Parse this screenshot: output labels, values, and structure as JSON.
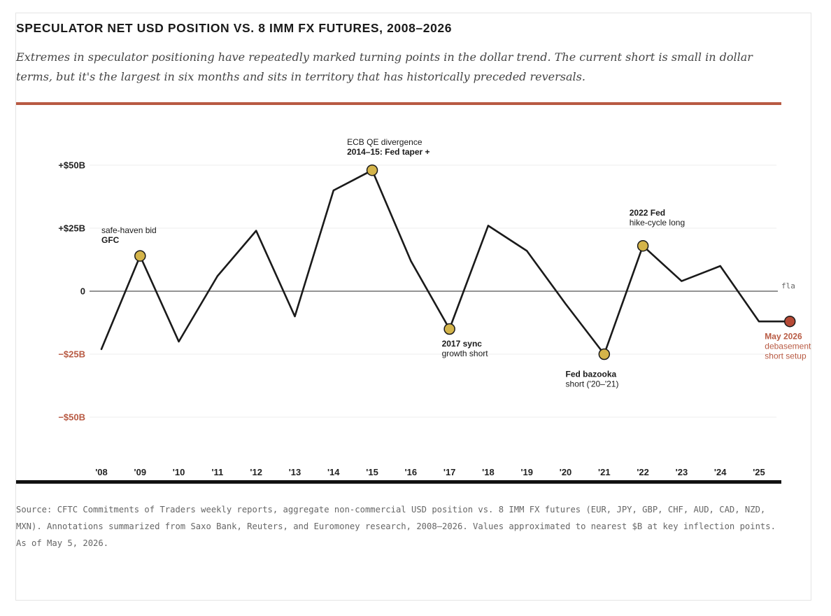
{
  "header": {
    "title": "SPECULATOR NET USD POSITION VS. 8 IMM FX FUTURES, 2008–2026",
    "subtitle": "Extremes in speculator positioning have repeatedly marked turning points in the dollar trend. The current short is small in dollar terms, but it's the largest in six months and sits in territory that has historically preceded reversals."
  },
  "footer": {
    "source": "Source: CFTC Commitments of Traders weekly reports, aggregate non-commercial USD position vs. 8 IMM FX futures (EUR, JPY, GBP, CHF, AUD, CAD, NZD, MXN). Annotations summarized from Saxo Bank, Reuters, and Euromoney research, 2008–2026. Values approximated to nearest $B at key inflection points. As of May 5, 2026."
  },
  "chart_data": {
    "type": "line",
    "title": "SPECULATOR NET USD POSITION VS. 8 IMM FX FUTURES, 2008–2026",
    "ylim": [
      -75,
      60
    ],
    "xlim": [
      2007.75,
      2026.3
    ],
    "grid": true,
    "y_ticks": [
      {
        "value": 50,
        "label": "+$50B",
        "color": "#222222"
      },
      {
        "value": 25,
        "label": "+$25B",
        "color": "#222222"
      },
      {
        "value": 0,
        "label": "0",
        "color": "#222222"
      },
      {
        "value": -25,
        "label": "−$25B",
        "color": "#b85a43"
      },
      {
        "value": -50,
        "label": "−$50B",
        "color": "#b85a43"
      }
    ],
    "x_ticks": [
      {
        "value": 2008,
        "label": "'08"
      },
      {
        "value": 2009,
        "label": "'09"
      },
      {
        "value": 2010,
        "label": "'10"
      },
      {
        "value": 2011,
        "label": "'11"
      },
      {
        "value": 2012,
        "label": "'12"
      },
      {
        "value": 2013,
        "label": "'13"
      },
      {
        "value": 2014,
        "label": "'14"
      },
      {
        "value": 2015,
        "label": "'15"
      },
      {
        "value": 2016,
        "label": "'16"
      },
      {
        "value": 2017,
        "label": "'17"
      },
      {
        "value": 2018,
        "label": "'18"
      },
      {
        "value": 2019,
        "label": "'19"
      },
      {
        "value": 2020,
        "label": "'20"
      },
      {
        "value": 2021,
        "label": "'21"
      },
      {
        "value": 2022,
        "label": "'22"
      },
      {
        "value": 2023,
        "label": "'23"
      },
      {
        "value": 2024,
        "label": "'24"
      },
      {
        "value": 2025,
        "label": "'25"
      }
    ],
    "zero_line_label": "fla",
    "series": [
      {
        "color": "#1a1a1a",
        "points": [
          {
            "x": 2008.0,
            "y": -23
          },
          {
            "x": 2009.0,
            "y": 14
          },
          {
            "x": 2010.0,
            "y": -20
          },
          {
            "x": 2011.0,
            "y": 6
          },
          {
            "x": 2012.0,
            "y": 24
          },
          {
            "x": 2013.0,
            "y": -10
          },
          {
            "x": 2014.0,
            "y": 40
          },
          {
            "x": 2015.0,
            "y": 48
          },
          {
            "x": 2016.0,
            "y": 12
          },
          {
            "x": 2017.0,
            "y": -15
          },
          {
            "x": 2018.0,
            "y": 26
          },
          {
            "x": 2019.0,
            "y": 16
          },
          {
            "x": 2020.0,
            "y": -5
          },
          {
            "x": 2021.0,
            "y": -25
          },
          {
            "x": 2022.0,
            "y": 18
          },
          {
            "x": 2023.0,
            "y": 4
          },
          {
            "x": 2024.0,
            "y": 10
          },
          {
            "x": 2025.0,
            "y": -12
          },
          {
            "x": 2025.8,
            "y": -12
          }
        ]
      }
    ],
    "markers": [
      {
        "x": 2009.0,
        "y": 14,
        "color": "#d4b44a"
      },
      {
        "x": 2015.0,
        "y": 48,
        "color": "#d4b44a"
      },
      {
        "x": 2017.0,
        "y": -15,
        "color": "#d4b44a"
      },
      {
        "x": 2021.0,
        "y": -25,
        "color": "#d4b44a"
      },
      {
        "x": 2022.0,
        "y": 18,
        "color": "#d4b44a"
      },
      {
        "x": 2025.8,
        "y": -12,
        "color": "#b64a36"
      }
    ],
    "annotations": [
      {
        "x": 2008.0,
        "y": 23,
        "align": "start",
        "lines": [
          {
            "text": "safe-haven bid",
            "bold": false
          },
          {
            "text": "GFC",
            "bold": true
          }
        ]
      },
      {
        "x": 2014.35,
        "y": 58,
        "align": "start",
        "lines": [
          {
            "text": "ECB QE divergence",
            "bold": false
          },
          {
            "text": "2014–15: Fed taper +",
            "bold": true
          }
        ]
      },
      {
        "x": 2016.8,
        "y": -22,
        "align": "start",
        "lines": [
          {
            "text": "2017 sync",
            "bold": true
          },
          {
            "text": "growth short",
            "bold": false
          }
        ]
      },
      {
        "x": 2020.0,
        "y": -34,
        "align": "start",
        "lines": [
          {
            "text": "Fed bazooka",
            "bold": true
          },
          {
            "text": "short ('20–'21)",
            "bold": false
          }
        ]
      },
      {
        "x": 2021.65,
        "y": 30,
        "align": "start",
        "lines": [
          {
            "text": "2022 Fed",
            "bold": true
          },
          {
            "text": "hike-cycle long",
            "bold": false
          }
        ]
      },
      {
        "x": 2025.15,
        "y": -19,
        "align": "start",
        "color": "#b85a43",
        "lines": [
          {
            "text": "May 2026",
            "bold": true
          },
          {
            "text": "debasement",
            "bold": false
          },
          {
            "text": "short setup",
            "bold": false
          }
        ]
      }
    ]
  }
}
